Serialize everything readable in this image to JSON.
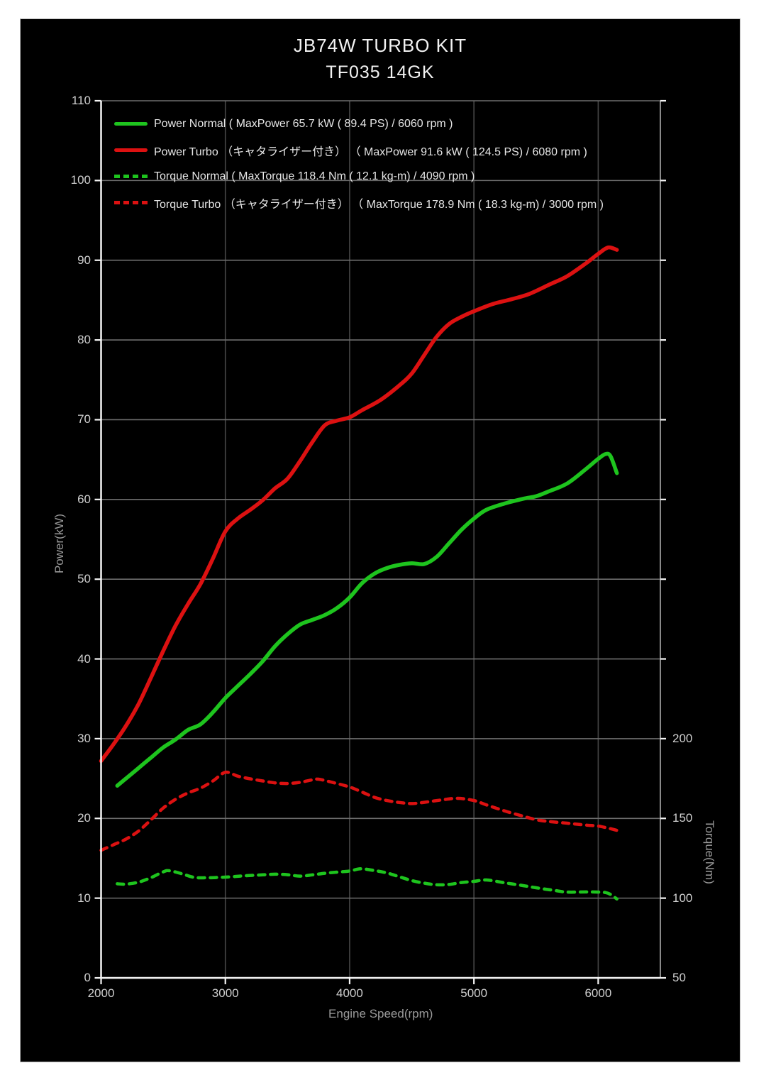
{
  "page": {
    "title": "JB74W TURBO KIT",
    "subtitle": "TF035 14GK"
  },
  "chart_data": {
    "type": "line",
    "title": "JB74W TURBO KIT",
    "subtitle": "TF035 14GK",
    "xlabel": "Engine Speed(rpm)",
    "ylabel_left": "Power(kW)",
    "ylabel_right": "Torque(Nm)",
    "x_range": [
      2000,
      6500
    ],
    "x_ticks": [
      2000,
      3000,
      4000,
      5000,
      6000
    ],
    "y_left_range": [
      0,
      110
    ],
    "y_left_ticks": [
      0,
      10,
      20,
      30,
      40,
      50,
      60,
      70,
      80,
      90,
      100,
      110
    ],
    "y_right_range": [
      50,
      600
    ],
    "y_right_ticks": [
      50,
      100,
      150,
      200
    ],
    "grid": {
      "horizontal": true,
      "vertical": true
    },
    "legend_position": "top-left",
    "background_color": "#000000",
    "series": [
      {
        "name": "Power Normal",
        "label": "Power Normal ( MaxPower 65.7 kW ( 89.4 PS) / 6060 rpm )",
        "axis": "left",
        "style": "solid",
        "color": "#1ec41e",
        "max": {
          "value_kw": 65.7,
          "value_ps": 89.4,
          "rpm": 6060
        },
        "points": [
          [
            2130,
            24.1
          ],
          [
            2200,
            25.0
          ],
          [
            2300,
            26.3
          ],
          [
            2400,
            27.6
          ],
          [
            2500,
            28.9
          ],
          [
            2600,
            29.9
          ],
          [
            2700,
            31.1
          ],
          [
            2800,
            31.8
          ],
          [
            2900,
            33.3
          ],
          [
            3000,
            35.1
          ],
          [
            3100,
            36.6
          ],
          [
            3200,
            38.1
          ],
          [
            3300,
            39.7
          ],
          [
            3400,
            41.6
          ],
          [
            3500,
            43.1
          ],
          [
            3600,
            44.3
          ],
          [
            3700,
            44.9
          ],
          [
            3800,
            45.5
          ],
          [
            3900,
            46.4
          ],
          [
            4000,
            47.7
          ],
          [
            4100,
            49.5
          ],
          [
            4200,
            50.7
          ],
          [
            4300,
            51.4
          ],
          [
            4400,
            51.8
          ],
          [
            4500,
            52.0
          ],
          [
            4600,
            51.9
          ],
          [
            4700,
            52.8
          ],
          [
            4800,
            54.5
          ],
          [
            4900,
            56.2
          ],
          [
            5000,
            57.6
          ],
          [
            5100,
            58.7
          ],
          [
            5250,
            59.5
          ],
          [
            5400,
            60.1
          ],
          [
            5500,
            60.4
          ],
          [
            5600,
            61.0
          ],
          [
            5750,
            62.0
          ],
          [
            5900,
            63.8
          ],
          [
            6000,
            65.1
          ],
          [
            6060,
            65.7
          ],
          [
            6100,
            65.4
          ],
          [
            6150,
            63.3
          ]
        ]
      },
      {
        "name": "Power Turbo",
        "label": "Power Turbo （キャタライザー付き） （ MaxPower 91.6 kW ( 124.5 PS) / 6080 rpm )",
        "axis": "left",
        "style": "solid",
        "color": "#dc1111",
        "max": {
          "value_kw": 91.6,
          "value_ps": 124.5,
          "rpm": 6080
        },
        "points": [
          [
            2000,
            27.2
          ],
          [
            2100,
            29.3
          ],
          [
            2200,
            31.6
          ],
          [
            2300,
            34.3
          ],
          [
            2400,
            37.6
          ],
          [
            2500,
            41.0
          ],
          [
            2600,
            44.2
          ],
          [
            2700,
            46.9
          ],
          [
            2800,
            49.4
          ],
          [
            2900,
            52.6
          ],
          [
            3000,
            56.0
          ],
          [
            3100,
            57.6
          ],
          [
            3200,
            58.7
          ],
          [
            3300,
            59.9
          ],
          [
            3400,
            61.4
          ],
          [
            3500,
            62.6
          ],
          [
            3600,
            64.8
          ],
          [
            3700,
            67.2
          ],
          [
            3800,
            69.3
          ],
          [
            3900,
            69.9
          ],
          [
            4000,
            70.3
          ],
          [
            4100,
            71.2
          ],
          [
            4250,
            72.5
          ],
          [
            4400,
            74.3
          ],
          [
            4500,
            75.8
          ],
          [
            4600,
            78.1
          ],
          [
            4700,
            80.4
          ],
          [
            4800,
            82.0
          ],
          [
            4900,
            82.9
          ],
          [
            5000,
            83.6
          ],
          [
            5150,
            84.5
          ],
          [
            5300,
            85.1
          ],
          [
            5450,
            85.8
          ],
          [
            5600,
            86.9
          ],
          [
            5750,
            88.0
          ],
          [
            5900,
            89.6
          ],
          [
            6000,
            90.8
          ],
          [
            6080,
            91.6
          ],
          [
            6150,
            91.3
          ]
        ]
      },
      {
        "name": "Torque Normal",
        "label": "Torque Normal ( MaxTorque 118.4 Nm ( 12.1 kg-m) / 4090 rpm )",
        "axis": "right",
        "style": "dashed",
        "color": "#1ec41e",
        "max": {
          "value_nm": 118.4,
          "value_kgm": 12.1,
          "rpm": 4090
        },
        "points": [
          [
            2130,
            109.0
          ],
          [
            2200,
            108.8
          ],
          [
            2300,
            110.0
          ],
          [
            2400,
            112.8
          ],
          [
            2500,
            116.5
          ],
          [
            2550,
            117.2
          ],
          [
            2650,
            115.3
          ],
          [
            2750,
            113.0
          ],
          [
            2850,
            112.8
          ],
          [
            2950,
            113.0
          ],
          [
            3050,
            113.4
          ],
          [
            3150,
            114.0
          ],
          [
            3300,
            114.6
          ],
          [
            3400,
            115.0
          ],
          [
            3500,
            114.7
          ],
          [
            3600,
            113.8
          ],
          [
            3700,
            114.6
          ],
          [
            3800,
            115.6
          ],
          [
            3900,
            116.3
          ],
          [
            4000,
            117.0
          ],
          [
            4090,
            118.4
          ],
          [
            4200,
            117.3
          ],
          [
            4300,
            115.8
          ],
          [
            4400,
            113.4
          ],
          [
            4500,
            111.0
          ],
          [
            4600,
            109.4
          ],
          [
            4700,
            108.4
          ],
          [
            4800,
            108.6
          ],
          [
            4900,
            109.8
          ],
          [
            5000,
            110.5
          ],
          [
            5100,
            111.4
          ],
          [
            5250,
            109.6
          ],
          [
            5400,
            107.8
          ],
          [
            5500,
            106.5
          ],
          [
            5650,
            104.8
          ],
          [
            5750,
            103.8
          ],
          [
            5900,
            103.9
          ],
          [
            6000,
            103.8
          ],
          [
            6060,
            103.5
          ],
          [
            6100,
            102.3
          ],
          [
            6150,
            99.5
          ]
        ]
      },
      {
        "name": "Torque Turbo",
        "label": "Torque Turbo （キャタライザー付き） （ MaxTorque 178.9 Nm ( 18.3 kg-m) / 3000 rpm )",
        "axis": "right",
        "style": "dashed",
        "color": "#dc1111",
        "max": {
          "value_nm": 178.9,
          "value_kgm": 18.3,
          "rpm": 3000
        },
        "points": [
          [
            2000,
            130.0
          ],
          [
            2100,
            133.5
          ],
          [
            2200,
            137.0
          ],
          [
            2300,
            142.0
          ],
          [
            2400,
            149.0
          ],
          [
            2500,
            156.5
          ],
          [
            2600,
            162.0
          ],
          [
            2700,
            166.0
          ],
          [
            2800,
            169.0
          ],
          [
            2900,
            173.5
          ],
          [
            3000,
            178.9
          ],
          [
            3100,
            176.5
          ],
          [
            3200,
            174.8
          ],
          [
            3300,
            173.5
          ],
          [
            3400,
            172.3
          ],
          [
            3500,
            171.9
          ],
          [
            3600,
            172.6
          ],
          [
            3700,
            174.2
          ],
          [
            3750,
            174.6
          ],
          [
            3850,
            172.8
          ],
          [
            4000,
            169.7
          ],
          [
            4100,
            166.5
          ],
          [
            4200,
            163.2
          ],
          [
            4300,
            161.2
          ],
          [
            4400,
            160.0
          ],
          [
            4500,
            159.3
          ],
          [
            4600,
            160.1
          ],
          [
            4750,
            161.7
          ],
          [
            4870,
            162.6
          ],
          [
            5000,
            161.2
          ],
          [
            5100,
            158.5
          ],
          [
            5250,
            154.6
          ],
          [
            5400,
            151.3
          ],
          [
            5500,
            149.2
          ],
          [
            5600,
            148.1
          ],
          [
            5750,
            147.0
          ],
          [
            5900,
            145.8
          ],
          [
            6000,
            145.2
          ],
          [
            6080,
            143.9
          ],
          [
            6150,
            142.5
          ]
        ]
      }
    ],
    "grid_colors": {
      "horizontal": "#6e6e6e",
      "vertical": "#464646",
      "axis": "#f5f5f5",
      "right_border": "#999999"
    }
  }
}
